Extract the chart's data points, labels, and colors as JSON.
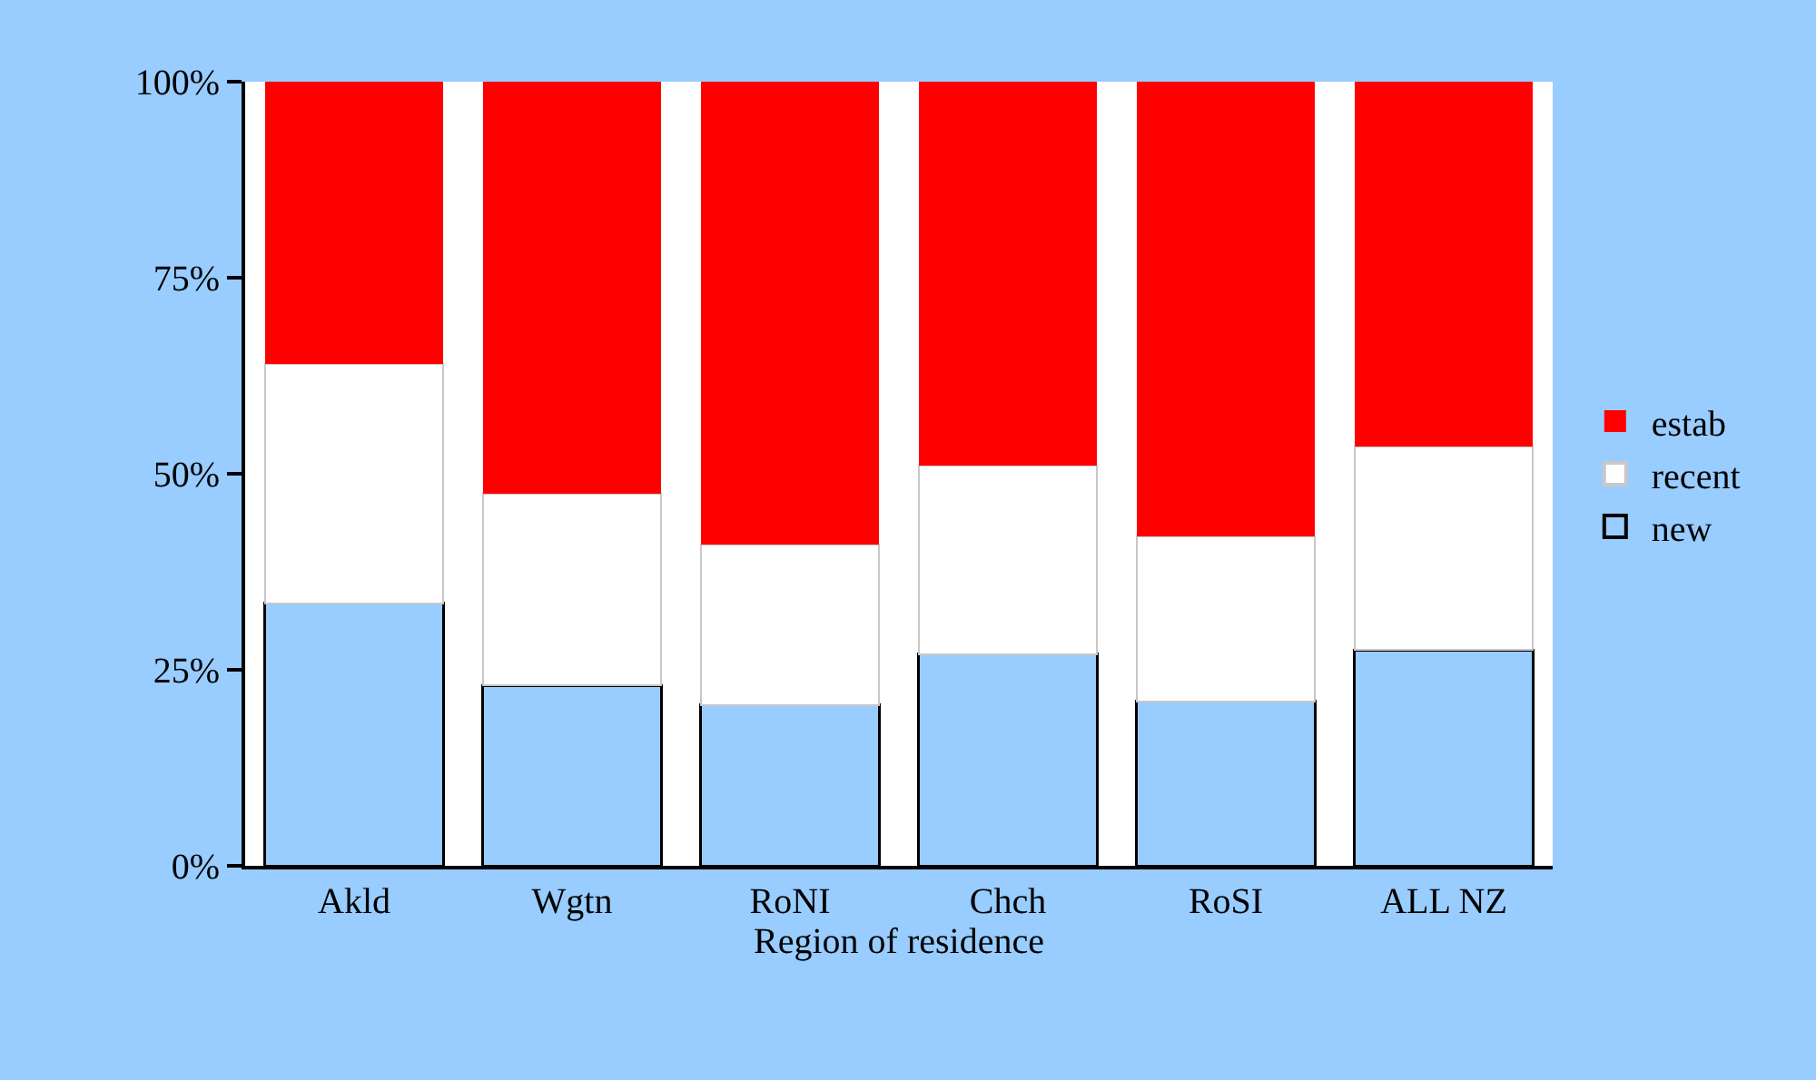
{
  "chart_data": {
    "type": "bar",
    "stacked": true,
    "xlabel": "Region of residence",
    "categories": [
      "Akld",
      "Wgtn",
      "RoNI",
      "Chch",
      "RoSI",
      "ALL NZ"
    ],
    "series": [
      {
        "name": "new",
        "color": "#99ccff",
        "values": [
          33.5,
          23,
          20.5,
          27,
          21,
          27.5
        ]
      },
      {
        "name": "recent",
        "color": "#ffffff",
        "values": [
          30.5,
          24.5,
          20.5,
          24,
          21,
          26
        ]
      },
      {
        "name": "estab",
        "color": "#ff0000",
        "values": [
          36,
          52.5,
          59,
          49,
          58,
          46.5
        ]
      }
    ],
    "ylim": [
      0,
      100
    ],
    "yticks": [
      {
        "value": 0,
        "label": "0%"
      },
      {
        "value": 25,
        "label": "25%"
      },
      {
        "value": 50,
        "label": "50%"
      },
      {
        "value": 75,
        "label": "75%"
      },
      {
        "value": 100,
        "label": "100%"
      }
    ],
    "grid": false,
    "legend": "right"
  }
}
